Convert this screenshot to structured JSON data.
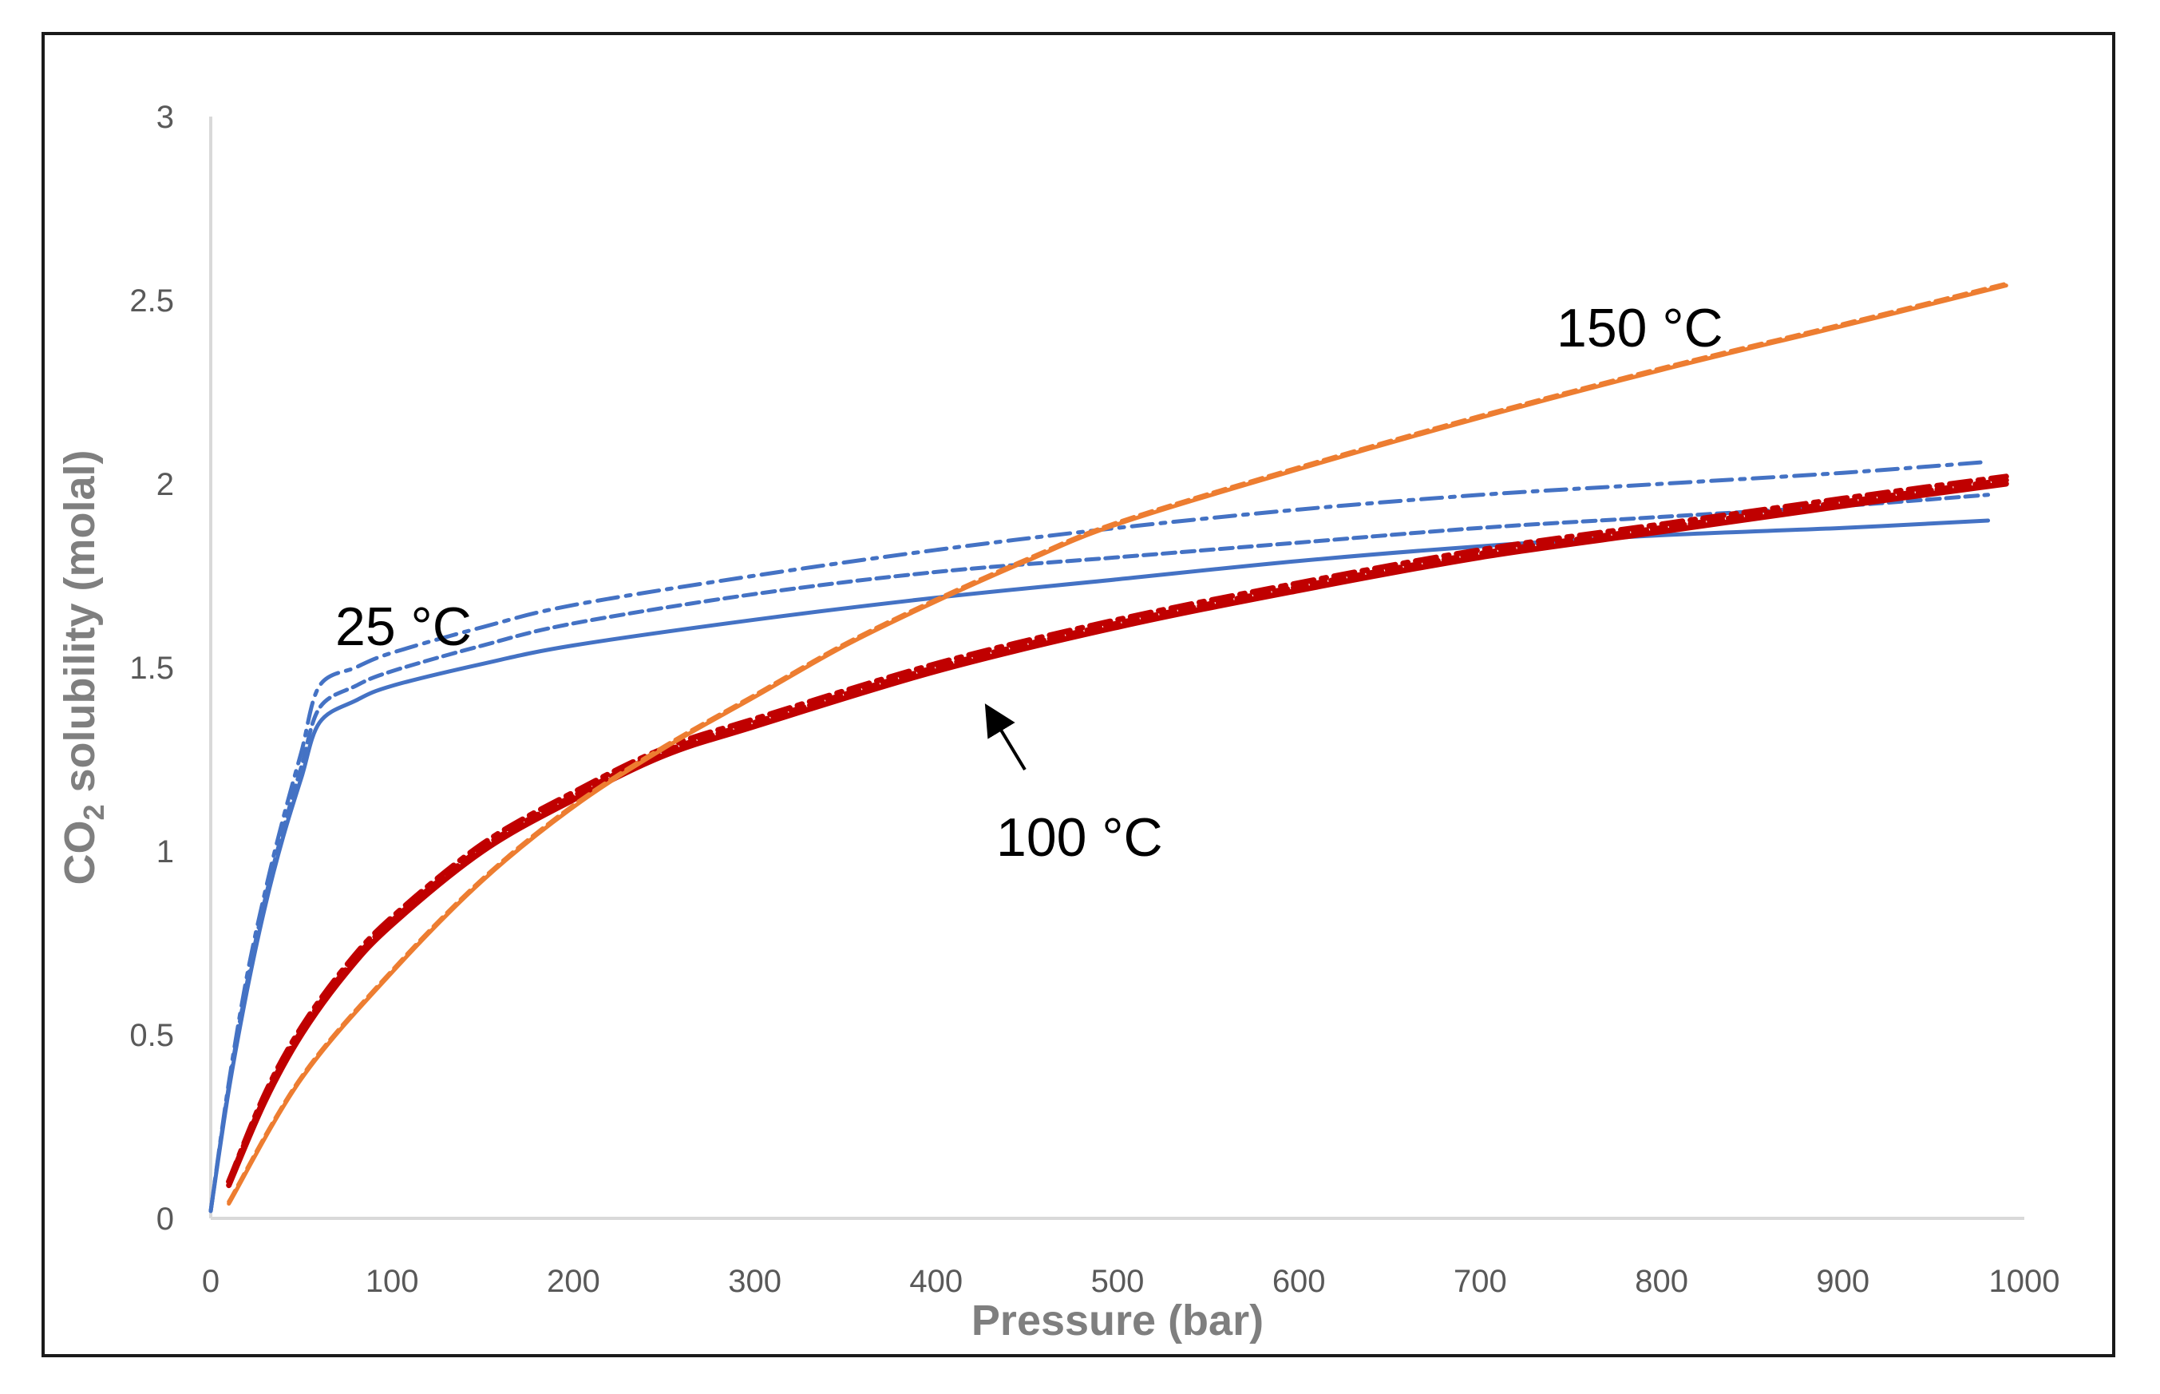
{
  "chart_data": {
    "type": "line",
    "title": "",
    "xlabel": "Pressure (bar)",
    "ylabel_main": "CO",
    "ylabel_sub": "2",
    "ylabel_rest": " solubility (molal)",
    "xlim": [
      0,
      1000
    ],
    "ylim": [
      0,
      3
    ],
    "xticks": [
      "0",
      "100",
      "200",
      "300",
      "400",
      "500",
      "600",
      "700",
      "800",
      "900",
      "1000"
    ],
    "yticks": [
      "0",
      "0.5",
      "1",
      "1.5",
      "2",
      "2.5",
      "3"
    ],
    "grid": false,
    "legend": "none",
    "colors": {
      "blue": "#4472c4",
      "red": "#c00000",
      "orange": "#ed7d31",
      "axis": "#d9d9d9",
      "text": "#595959"
    },
    "series": [
      {
        "name": "25 °C solid",
        "color": "#4472c4",
        "style": "solid",
        "x": [
          0,
          10,
          20,
          30,
          40,
          50,
          60,
          80,
          100,
          150,
          200,
          300,
          400,
          500,
          600,
          700,
          800,
          900,
          980
        ],
        "y": [
          0.02,
          0.35,
          0.62,
          0.85,
          1.04,
          1.2,
          1.35,
          1.41,
          1.45,
          1.51,
          1.56,
          1.63,
          1.69,
          1.74,
          1.79,
          1.83,
          1.86,
          1.88,
          1.9
        ]
      },
      {
        "name": "25 °C dashed",
        "color": "#4472c4",
        "style": "dashed",
        "x": [
          0,
          10,
          20,
          30,
          40,
          50,
          60,
          80,
          100,
          150,
          200,
          300,
          400,
          500,
          600,
          700,
          800,
          900,
          980
        ],
        "y": [
          0.02,
          0.36,
          0.64,
          0.87,
          1.06,
          1.23,
          1.39,
          1.45,
          1.49,
          1.56,
          1.62,
          1.7,
          1.76,
          1.8,
          1.84,
          1.88,
          1.91,
          1.94,
          1.97
        ]
      },
      {
        "name": "25 °C dash-dot",
        "color": "#4472c4",
        "style": "dashdot",
        "x": [
          0,
          10,
          20,
          30,
          40,
          50,
          60,
          80,
          100,
          150,
          200,
          300,
          400,
          500,
          600,
          700,
          800,
          900,
          980
        ],
        "y": [
          0.02,
          0.37,
          0.66,
          0.89,
          1.09,
          1.27,
          1.45,
          1.5,
          1.54,
          1.61,
          1.67,
          1.75,
          1.82,
          1.88,
          1.93,
          1.97,
          2.0,
          2.03,
          2.06
        ]
      },
      {
        "name": "100 °C solid",
        "color": "#c00000",
        "style": "solid",
        "x": [
          10,
          30,
          50,
          75,
          100,
          150,
          200,
          250,
          300,
          400,
          500,
          600,
          700,
          800,
          900,
          990
        ],
        "y": [
          0.09,
          0.32,
          0.5,
          0.67,
          0.8,
          1.0,
          1.14,
          1.26,
          1.34,
          1.49,
          1.61,
          1.71,
          1.8,
          1.87,
          1.94,
          2.0
        ]
      },
      {
        "name": "100 °C dashed",
        "color": "#c00000",
        "style": "dashed",
        "x": [
          10,
          30,
          50,
          75,
          100,
          150,
          200,
          250,
          300,
          400,
          500,
          600,
          700,
          800,
          900,
          990
        ],
        "y": [
          0.1,
          0.33,
          0.51,
          0.68,
          0.81,
          1.01,
          1.15,
          1.27,
          1.35,
          1.5,
          1.62,
          1.72,
          1.81,
          1.88,
          1.95,
          2.01
        ]
      },
      {
        "name": "100 °C dash-dot",
        "color": "#c00000",
        "style": "dashdot",
        "x": [
          10,
          30,
          50,
          75,
          100,
          150,
          200,
          250,
          300,
          400,
          500,
          600,
          700,
          800,
          900,
          990
        ],
        "y": [
          0.1,
          0.34,
          0.52,
          0.69,
          0.82,
          1.02,
          1.16,
          1.28,
          1.36,
          1.51,
          1.63,
          1.73,
          1.82,
          1.89,
          1.96,
          2.02
        ]
      },
      {
        "name": "150 °C solid",
        "color": "#ed7d31",
        "style": "solid",
        "x": [
          10,
          50,
          100,
          150,
          200,
          250,
          300,
          350,
          400,
          450,
          500,
          600,
          700,
          800,
          900,
          990
        ],
        "y": [
          0.04,
          0.38,
          0.67,
          0.92,
          1.12,
          1.28,
          1.42,
          1.56,
          1.68,
          1.79,
          1.89,
          2.04,
          2.18,
          2.31,
          2.43,
          2.54
        ]
      },
      {
        "name": "150 °C dashed",
        "color": "#ed7d31",
        "style": "dashed",
        "x": [
          10,
          50,
          100,
          150,
          200,
          250,
          300,
          350,
          400,
          450,
          500,
          600,
          700,
          800,
          900,
          990
        ],
        "y": [
          0.045,
          0.385,
          0.675,
          0.925,
          1.125,
          1.285,
          1.425,
          1.565,
          1.685,
          1.795,
          1.895,
          2.045,
          2.185,
          2.315,
          2.435,
          2.545
        ]
      }
    ],
    "annotations": [
      {
        "label": "25 °C"
      },
      {
        "label": "100 °C"
      },
      {
        "label": "150 °C"
      }
    ]
  }
}
